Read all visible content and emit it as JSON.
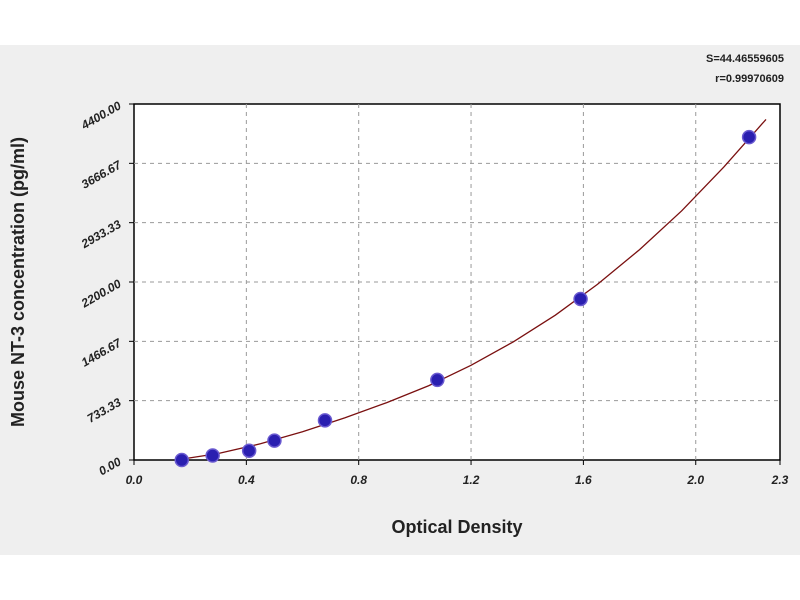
{
  "chart_data": {
    "type": "scatter",
    "title": "",
    "xlabel": "Optical Density",
    "ylabel": "Mouse NT-3 concentration (pg/ml)",
    "xlim": [
      0.0,
      2.3
    ],
    "ylim": [
      0.0,
      4400.0
    ],
    "x_ticks": [
      "0.0",
      "0.4",
      "0.8",
      "1.2",
      "1.6",
      "2.0",
      "2.3"
    ],
    "x_tick_values": [
      0.0,
      0.4,
      0.8,
      1.2,
      1.6,
      2.0,
      2.3
    ],
    "y_ticks": [
      "0.00",
      "733.33",
      "1466.67",
      "2200.00",
      "2933.33",
      "3666.67",
      "4400.00"
    ],
    "y_tick_values": [
      0.0,
      733.33,
      1466.67,
      2200.0,
      2933.33,
      3666.67,
      4400.0
    ],
    "grid": true,
    "series": [
      {
        "x": [
          0.17,
          0.28,
          0.41,
          0.5,
          0.68,
          1.08,
          1.59,
          2.19
        ],
        "y": [
          0,
          55,
          115,
          240,
          490,
          990,
          1990,
          3990
        ],
        "marker_color": "#2a1fb0",
        "marker_edge": "#6a5ad0"
      }
    ],
    "fit_curve": {
      "x": [
        0.15,
        0.3,
        0.45,
        0.6,
        0.75,
        0.9,
        1.05,
        1.2,
        1.35,
        1.5,
        1.65,
        1.8,
        1.95,
        2.1,
        2.25
      ],
      "y": [
        0,
        80,
        200,
        350,
        520,
        710,
        920,
        1170,
        1460,
        1790,
        2170,
        2600,
        3080,
        3620,
        4210
      ],
      "color": "#7a1010"
    },
    "annotations": [
      "S=44.46559605",
      "r=0.99970609"
    ]
  }
}
